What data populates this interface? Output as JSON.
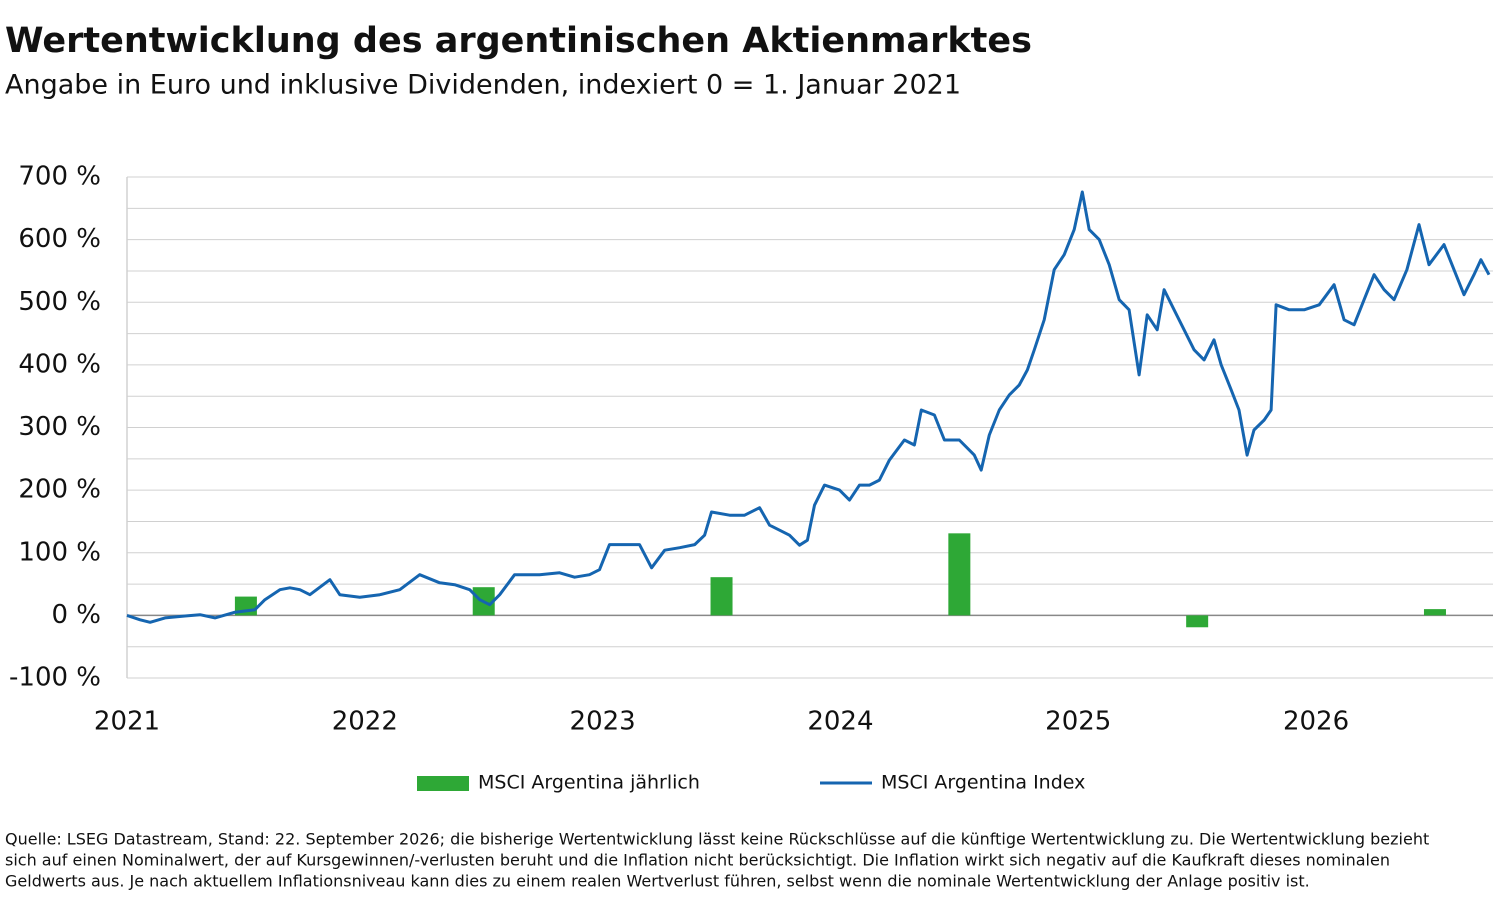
{
  "chart_data": {
    "type": "bar_line",
    "title": "Wertentwicklung des argentinischen Aktienmarktes",
    "subtitle": "Angabe in Euro und inklusive Dividenden, indexiert 0 = 1. Januar 2021",
    "xlim": [
      2021,
      2026.744
    ],
    "xticks": [
      2021,
      2022,
      2023,
      2024,
      2025,
      2026
    ],
    "ylim": [
      -100,
      700
    ],
    "yticks": [
      {
        "value": -100,
        "label": "-100 %"
      },
      {
        "value": 0,
        "label": "0 %"
      },
      {
        "value": 100,
        "label": "100 %"
      },
      {
        "value": 200,
        "label": "200 %"
      },
      {
        "value": 300,
        "label": "300 %"
      },
      {
        "value": 400,
        "label": "400 %"
      },
      {
        "value": 500,
        "label": "500 %"
      },
      {
        "value": 600,
        "label": "600 %"
      },
      {
        "value": 700,
        "label": "700 %"
      }
    ],
    "minor_yticks": [
      -50,
      50,
      150,
      250,
      350,
      450,
      550,
      650
    ],
    "grid": true,
    "legend": "bottom",
    "series": [
      {
        "name": "MSCI Argentina jährlich",
        "type": "bar",
        "color": "#2ea836",
        "x": [
          2021,
          2022,
          2023,
          2024,
          2025,
          2026
        ],
        "values": [
          30,
          45,
          61,
          131,
          -19,
          10
        ]
      },
      {
        "name": "MSCI Argentina Index",
        "type": "line",
        "color": "#1565b0",
        "x": [
          2021.0,
          2021.055,
          2021.097,
          2021.16,
          2021.244,
          2021.307,
          2021.37,
          2021.454,
          2021.538,
          2021.58,
          2021.643,
          2021.685,
          2021.727,
          2021.769,
          2021.853,
          2021.895,
          2021.979,
          2022.063,
          2022.147,
          2022.231,
          2022.315,
          2022.378,
          2022.441,
          2022.483,
          2022.525,
          2022.567,
          2022.63,
          2022.735,
          2022.819,
          2022.882,
          2022.945,
          2022.987,
          2023.029,
          2023.092,
          2023.155,
          2023.206,
          2023.261,
          2023.324,
          2023.387,
          2023.429,
          2023.458,
          2023.534,
          2023.597,
          2023.66,
          2023.702,
          2023.744,
          2023.786,
          2023.828,
          2023.861,
          2023.891,
          2023.933,
          2023.996,
          2024.038,
          2024.08,
          2024.122,
          2024.164,
          2024.206,
          2024.269,
          2024.311,
          2024.34,
          2024.395,
          2024.437,
          2024.5,
          2024.563,
          2024.592,
          2024.626,
          2024.668,
          2024.71,
          2024.752,
          2024.786,
          2024.815,
          2024.857,
          2024.899,
          2024.941,
          2024.983,
          2025.017,
          2025.046,
          2025.088,
          2025.13,
          2025.172,
          2025.214,
          2025.256,
          2025.29,
          2025.332,
          2025.361,
          2025.403,
          2025.445,
          2025.487,
          2025.529,
          2025.571,
          2025.601,
          2025.643,
          2025.676,
          2025.71,
          2025.739,
          2025.782,
          2025.811,
          2025.832,
          2025.887,
          2025.95,
          2026.013,
          2026.076,
          2026.118,
          2026.16,
          2026.202,
          2026.244,
          2026.286,
          2026.328,
          2026.382,
          2026.433,
          2026.475,
          2026.538,
          2026.58,
          2026.622,
          2026.664,
          2026.693,
          2026.727
        ],
        "values": [
          0,
          -7,
          -11,
          -4,
          -1,
          1,
          -4,
          5,
          9,
          25,
          41,
          44,
          41,
          33,
          57,
          33,
          29,
          33,
          41,
          65,
          52,
          49,
          41,
          25,
          17,
          33,
          65,
          65,
          68,
          61,
          65,
          73,
          113,
          113,
          113,
          76,
          104,
          108,
          113,
          128,
          165,
          160,
          160,
          172,
          144,
          136,
          128,
          112,
          120,
          176,
          208,
          200,
          184,
          208,
          208,
          216,
          248,
          280,
          272,
          328,
          320,
          280,
          280,
          256,
          232,
          288,
          328,
          352,
          368,
          392,
          424,
          472,
          552,
          576,
          616,
          676,
          616,
          600,
          560,
          504,
          488,
          384,
          480,
          456,
          520,
          488,
          456,
          424,
          408,
          440,
          400,
          360,
          328,
          256,
          296,
          312,
          328,
          496,
          488,
          488,
          496,
          528,
          472,
          464,
          504,
          544,
          520,
          504,
          552,
          624,
          560,
          592,
          552,
          512,
          544,
          568,
          544
        ]
      }
    ],
    "footnote": [
      "Quelle: LSEG Datastream, Stand: 22. September 2026; die bisherige Wertentwicklung lässt keine Rückschlüsse auf die künftige Wertentwicklung zu. Die Wertentwicklung bezieht",
      "sich auf einen Nominalwert, der auf Kursgewinnen/-verlusten beruht und die Inflation nicht berücksichtigt. Die Inflation wirkt sich negativ auf die Kaufkraft dieses nominalen",
      "Geldwerts aus. Je nach aktuellem Inflationsniveau kann dies zu einem realen Wertverlust führen, selbst wenn die nominale Wertentwicklung der Anlage positiv ist."
    ]
  }
}
